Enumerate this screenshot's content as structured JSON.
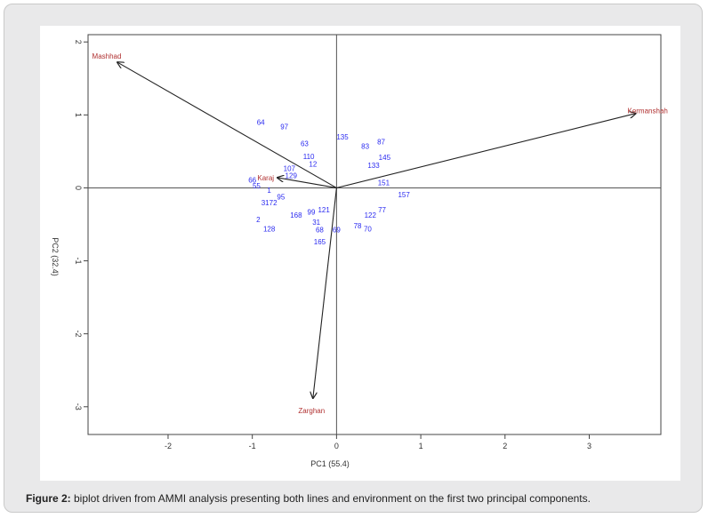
{
  "chart_data": {
    "type": "scatter",
    "subtype": "biplot",
    "xlabel": "PC1 (55.4)",
    "ylabel": "PC2 (32.4)",
    "xlim": [
      -2.95,
      3.85
    ],
    "ylim": [
      -3.38,
      2.1
    ],
    "xticks": [
      -2,
      -1,
      0,
      1,
      2,
      3
    ],
    "yticks": [
      -3,
      -2,
      -1,
      0,
      1,
      2
    ],
    "xtick_labels": [
      "-2",
      "-1",
      "0",
      "1",
      "2",
      "3"
    ],
    "ytick_labels": [
      "-3",
      "-2",
      "-1",
      "0",
      "1",
      "2"
    ],
    "reference_lines": {
      "x": 0,
      "y": 0
    },
    "environments": [
      {
        "name": "Mashhad",
        "x": -2.6,
        "y": 1.72
      },
      {
        "name": "Kermanshah",
        "x": 3.55,
        "y": 1.02
      },
      {
        "name": "Zarghan",
        "x": -0.28,
        "y": -2.88
      },
      {
        "name": "Karaj",
        "x": -0.7,
        "y": 0.14
      }
    ],
    "genotypes": [
      {
        "label": "64",
        "x": -0.9,
        "y": 0.9
      },
      {
        "label": "97",
        "x": -0.62,
        "y": 0.84
      },
      {
        "label": "135",
        "x": 0.07,
        "y": 0.7
      },
      {
        "label": "87",
        "x": 0.53,
        "y": 0.63
      },
      {
        "label": "63",
        "x": -0.38,
        "y": 0.61
      },
      {
        "label": "83",
        "x": 0.34,
        "y": 0.57
      },
      {
        "label": "110",
        "x": -0.33,
        "y": 0.43
      },
      {
        "label": "145",
        "x": 0.57,
        "y": 0.42
      },
      {
        "label": "12",
        "x": -0.28,
        "y": 0.33
      },
      {
        "label": "107",
        "x": -0.56,
        "y": 0.27
      },
      {
        "label": "129",
        "x": -0.54,
        "y": 0.17
      },
      {
        "label": "66",
        "x": -1.0,
        "y": 0.11
      },
      {
        "label": "55",
        "x": -0.95,
        "y": 0.03
      },
      {
        "label": "151",
        "x": 0.56,
        "y": 0.07
      },
      {
        "label": "157",
        "x": 0.8,
        "y": -0.09
      },
      {
        "label": "1",
        "x": -0.8,
        "y": -0.03
      },
      {
        "label": "95",
        "x": -0.66,
        "y": -0.12
      },
      {
        "label": "3172",
        "x": -0.8,
        "y": -0.2
      },
      {
        "label": "168",
        "x": -0.48,
        "y": -0.37
      },
      {
        "label": "99",
        "x": -0.3,
        "y": -0.33
      },
      {
        "label": "2",
        "x": -0.93,
        "y": -0.43
      },
      {
        "label": "128",
        "x": -0.8,
        "y": -0.56
      },
      {
        "label": "31",
        "x": -0.24,
        "y": -0.47
      },
      {
        "label": "68",
        "x": -0.2,
        "y": -0.57
      },
      {
        "label": "122",
        "x": 0.4,
        "y": -0.37
      },
      {
        "label": "77",
        "x": 0.54,
        "y": -0.3
      },
      {
        "label": "78",
        "x": 0.25,
        "y": -0.52
      },
      {
        "label": "70",
        "x": 0.37,
        "y": -0.56
      },
      {
        "label": "165",
        "x": -0.2,
        "y": -0.74
      },
      {
        "label": "69",
        "x": 0.0,
        "y": -0.57
      },
      {
        "label": "133",
        "x": 0.44,
        "y": 0.31
      },
      {
        "label": "121",
        "x": -0.15,
        "y": -0.3
      }
    ]
  },
  "caption": {
    "prefix": "Figure 2:",
    "text": " biplot driven from AMMI analysis presenting both lines and environment on the first two principal components."
  },
  "colors": {
    "genotype": "#2a2af0",
    "environment": "#b03030",
    "arrow": "#222222",
    "axis": "#444444"
  }
}
